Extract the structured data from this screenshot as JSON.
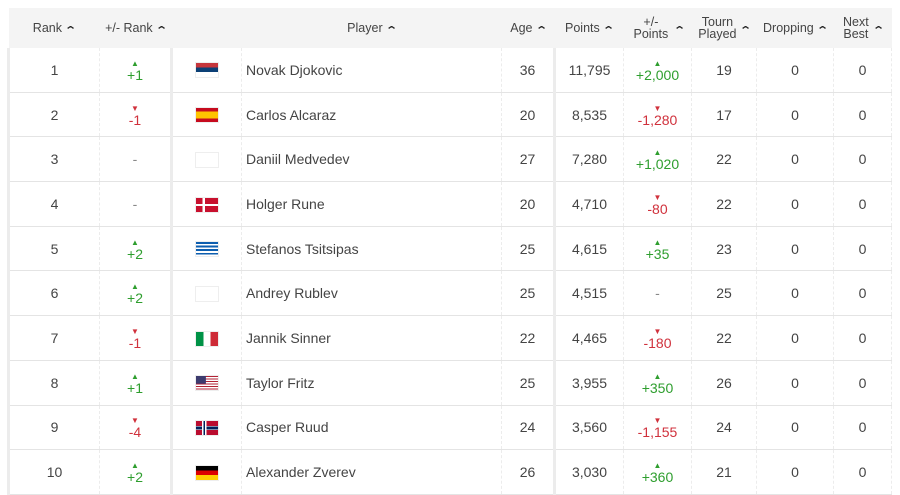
{
  "headers": [
    {
      "key": "rank",
      "label": "Rank"
    },
    {
      "key": "rank_change",
      "label": "+/- Rank"
    },
    {
      "key": "flag",
      "label": ""
    },
    {
      "key": "player",
      "label": "Player"
    },
    {
      "key": "age",
      "label": "Age"
    },
    {
      "key": "points",
      "label": "Points"
    },
    {
      "key": "points_change",
      "label": "+/- Points"
    },
    {
      "key": "tourn_played",
      "label": "Tourn Played"
    },
    {
      "key": "dropping",
      "label": "Dropping"
    },
    {
      "key": "next_best",
      "label": "Next Best"
    }
  ],
  "sort_icon": "chevron-up-icon",
  "colors": {
    "up": "#2e9e2e",
    "down": "#d0313c"
  },
  "rows": [
    {
      "rank": "1",
      "rank_change": "+1",
      "rank_dir": "up",
      "flag": "RS",
      "player": "Novak Djokovic",
      "age": "36",
      "points": "11,795",
      "points_change": "+2,000",
      "points_dir": "up",
      "tourn_played": "19",
      "dropping": "0",
      "next_best": "0"
    },
    {
      "rank": "2",
      "rank_change": "-1",
      "rank_dir": "down",
      "flag": "ES",
      "player": "Carlos Alcaraz",
      "age": "20",
      "points": "8,535",
      "points_change": "-1,280",
      "points_dir": "down",
      "tourn_played": "17",
      "dropping": "0",
      "next_best": "0"
    },
    {
      "rank": "3",
      "rank_change": "-",
      "rank_dir": "flat",
      "flag": "none",
      "player": "Daniil Medvedev",
      "age": "27",
      "points": "7,280",
      "points_change": "+1,020",
      "points_dir": "up",
      "tourn_played": "22",
      "dropping": "0",
      "next_best": "0"
    },
    {
      "rank": "4",
      "rank_change": "-",
      "rank_dir": "flat",
      "flag": "DK",
      "player": "Holger Rune",
      "age": "20",
      "points": "4,710",
      "points_change": "-80",
      "points_dir": "down",
      "tourn_played": "22",
      "dropping": "0",
      "next_best": "0"
    },
    {
      "rank": "5",
      "rank_change": "+2",
      "rank_dir": "up",
      "flag": "GR",
      "player": "Stefanos Tsitsipas",
      "age": "25",
      "points": "4,615",
      "points_change": "+35",
      "points_dir": "up",
      "tourn_played": "23",
      "dropping": "0",
      "next_best": "0"
    },
    {
      "rank": "6",
      "rank_change": "+2",
      "rank_dir": "up",
      "flag": "none",
      "player": "Andrey Rublev",
      "age": "25",
      "points": "4,515",
      "points_change": "-",
      "points_dir": "flat",
      "tourn_played": "25",
      "dropping": "0",
      "next_best": "0"
    },
    {
      "rank": "7",
      "rank_change": "-1",
      "rank_dir": "down",
      "flag": "IT",
      "player": "Jannik Sinner",
      "age": "22",
      "points": "4,465",
      "points_change": "-180",
      "points_dir": "down",
      "tourn_played": "22",
      "dropping": "0",
      "next_best": "0"
    },
    {
      "rank": "8",
      "rank_change": "+1",
      "rank_dir": "up",
      "flag": "US",
      "player": "Taylor Fritz",
      "age": "25",
      "points": "3,955",
      "points_change": "+350",
      "points_dir": "up",
      "tourn_played": "26",
      "dropping": "0",
      "next_best": "0"
    },
    {
      "rank": "9",
      "rank_change": "-4",
      "rank_dir": "down",
      "flag": "NO",
      "player": "Casper Ruud",
      "age": "24",
      "points": "3,560",
      "points_change": "-1,155",
      "points_dir": "down",
      "tourn_played": "24",
      "dropping": "0",
      "next_best": "0"
    },
    {
      "rank": "10",
      "rank_change": "+2",
      "rank_dir": "up",
      "flag": "DE",
      "player": "Alexander Zverev",
      "age": "26",
      "points": "3,030",
      "points_change": "+360",
      "points_dir": "up",
      "tourn_played": "21",
      "dropping": "0",
      "next_best": "0"
    }
  ]
}
